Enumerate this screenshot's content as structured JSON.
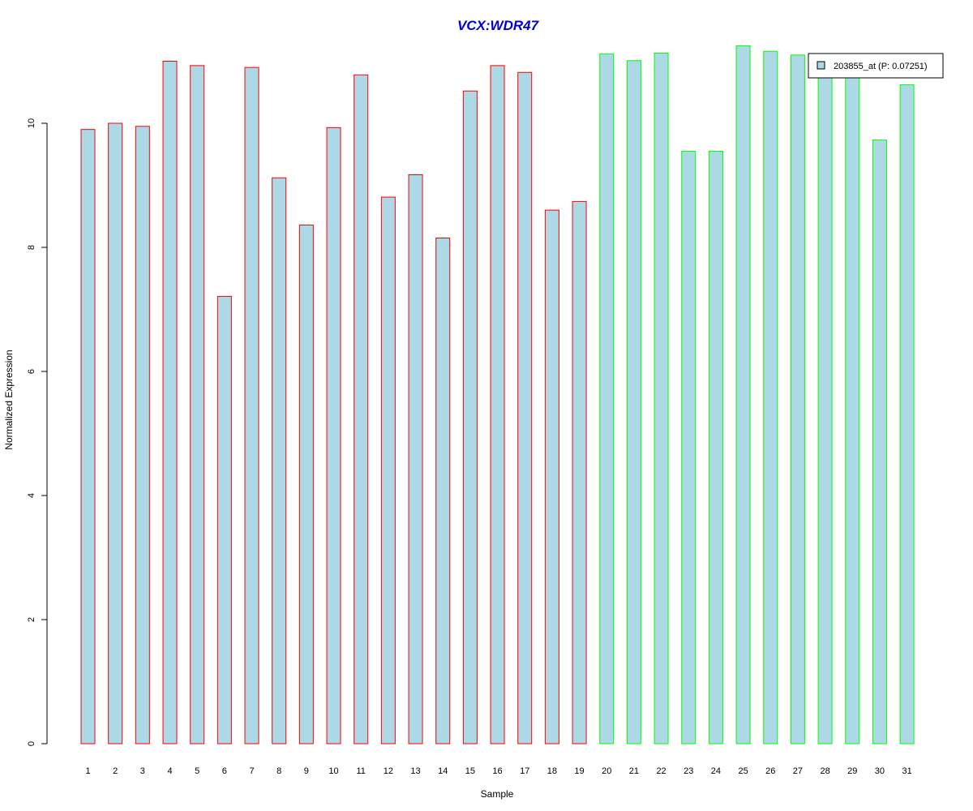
{
  "chart_data": {
    "type": "bar",
    "title": "VCX:WDR47",
    "xlabel": "Sample",
    "ylabel": "Normalized Expression",
    "ylim": [
      0,
      11.3
    ],
    "yticks": [
      0,
      2,
      4,
      6,
      8,
      10
    ],
    "grid": false,
    "legend_position": "top-right",
    "categories": [
      "1",
      "2",
      "3",
      "4",
      "5",
      "6",
      "7",
      "8",
      "9",
      "10",
      "11",
      "12",
      "13",
      "14",
      "15",
      "16",
      "17",
      "18",
      "19",
      "20",
      "21",
      "22",
      "23",
      "24",
      "25",
      "26",
      "27",
      "28",
      "29",
      "30",
      "31"
    ],
    "series": [
      {
        "name": "203855_at (P: 0.07251)",
        "values": [
          9.9,
          10.0,
          9.95,
          11.0,
          10.93,
          7.21,
          10.9,
          9.12,
          8.36,
          9.93,
          10.78,
          8.81,
          9.17,
          8.15,
          10.52,
          10.93,
          10.82,
          8.6,
          8.74,
          11.12,
          11.01,
          11.13,
          9.55,
          9.55,
          11.25,
          11.16,
          11.1,
          10.8,
          10.8,
          9.73,
          10.62
        ],
        "groups": [
          1,
          1,
          1,
          1,
          1,
          1,
          1,
          1,
          1,
          1,
          1,
          1,
          1,
          1,
          1,
          1,
          1,
          1,
          1,
          2,
          2,
          2,
          2,
          2,
          2,
          2,
          2,
          2,
          2,
          2,
          2
        ]
      }
    ],
    "colors": {
      "bar_fill": "#ADD8E6",
      "group_1_border": "#FF0000",
      "group_2_border": "#00FF00",
      "title": "#0000CD",
      "axis": "#000000"
    }
  }
}
